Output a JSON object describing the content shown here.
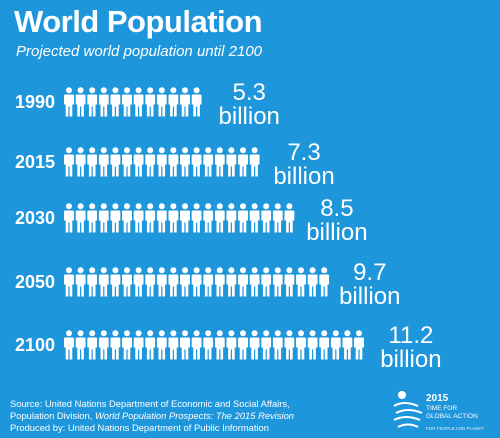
{
  "header": {
    "title": "World Population",
    "subtitle": "Projected world population until 2100"
  },
  "chart_data": {
    "type": "bar",
    "title": "World Population",
    "subtitle": "Projected world population until 2100",
    "categories": [
      "1990",
      "2015",
      "2030",
      "2050",
      "2100"
    ],
    "values": [
      5.3,
      7.3,
      8.5,
      9.7,
      11.2
    ],
    "unit": "billion",
    "value_labels": [
      {
        "number": "5.3",
        "unit": "billion"
      },
      {
        "number": "7.3",
        "unit": "billion"
      },
      {
        "number": "8.5",
        "unit": "billion"
      },
      {
        "number": "9.7",
        "unit": "billion"
      },
      {
        "number": "11.2",
        "unit": "billion"
      }
    ],
    "mark": "person-icons",
    "bar_color": "#ffffff",
    "background_color": "#1e96dc"
  },
  "footer": {
    "source_prefix": "Source: United Nations Department of Economic and Social Affairs,",
    "source_line2_start": "Population Division, ",
    "source_line2_italic": "World Population Prospects: The 2015 Revision",
    "produced_by": "Produced by: United Nations Department of Public Information"
  },
  "logo": {
    "year": "2015",
    "line1": "TIME FOR",
    "line2": "GLOBAL ACTION",
    "tagline": "FOR PEOPLE AND PLANET"
  }
}
